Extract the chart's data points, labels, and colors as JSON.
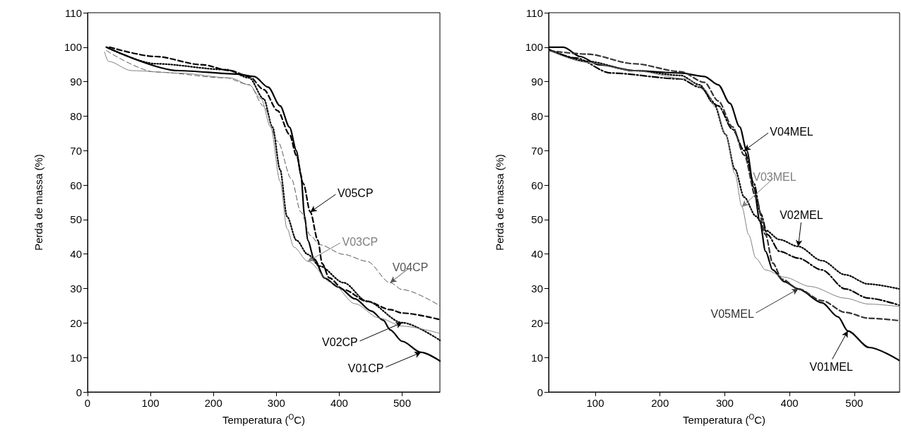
{
  "chart_data": [
    {
      "type": "line",
      "xlabel": "Temperatura ($^{O}$C)",
      "ylabel": "Perda de massa (%)",
      "xlim": [
        0,
        560
      ],
      "xticks": [
        0,
        100,
        200,
        300,
        400,
        500
      ],
      "ylim": [
        0,
        110
      ],
      "yticks": [
        0,
        10,
        20,
        30,
        40,
        50,
        60,
        70,
        80,
        90,
        100,
        110
      ],
      "grid": false,
      "legend": false,
      "marker": "none",
      "series": [
        {
          "name": "V01CP",
          "color": "#000000",
          "line_style": "solid",
          "x": [
            30,
            145,
            238,
            265,
            287,
            306,
            321,
            332,
            339,
            345,
            350,
            360,
            377,
            399,
            425,
            451,
            470,
            481,
            500,
            530,
            560
          ],
          "values": [
            100,
            93.2,
            92.2,
            91.5,
            88.4,
            83,
            76.8,
            70,
            63,
            51,
            44,
            38.6,
            33,
            30.4,
            27,
            23.5,
            20.8,
            18,
            14.7,
            11.5,
            9
          ]
        },
        {
          "name": "V05CP",
          "color": "#000000",
          "line_style": "dashed",
          "x": [
            35,
            108,
            182,
            227,
            257,
            280,
            302,
            321,
            332,
            343,
            354,
            366,
            373,
            384,
            407,
            444,
            481,
            500,
            560
          ],
          "values": [
            100,
            97.3,
            94.9,
            93.2,
            91.5,
            87.7,
            81.6,
            74.7,
            68.6,
            60.4,
            52.2,
            44,
            37.2,
            33.1,
            29.7,
            26.3,
            23.9,
            22.9,
            21
          ]
        },
        {
          "name": "V02CP",
          "color": "#000000",
          "line_style": "dotted",
          "x": [
            30,
            108,
            220,
            257,
            280,
            294,
            306,
            317,
            332,
            350,
            369,
            407,
            444,
            500,
            560
          ],
          "values": [
            100,
            95.2,
            93.5,
            91.1,
            85,
            76.8,
            64.5,
            50.9,
            44,
            39.9,
            36.5,
            31.7,
            26.3,
            20.1,
            15
          ]
        },
        {
          "name": "V04CP",
          "color": "#555555",
          "line_style": "dashed",
          "x": [
            30,
            108,
            220,
            257,
            280,
            302,
            324,
            339,
            354,
            369,
            407,
            444,
            481,
            500,
            560
          ],
          "values": [
            99,
            92.8,
            91.1,
            89.1,
            82.9,
            72.7,
            61.8,
            52.2,
            45.4,
            42.7,
            39.9,
            37.9,
            31.7,
            29.7,
            25
          ]
        },
        {
          "name": "V03CP",
          "color": "#7f7f7f",
          "line_style": "solid",
          "x": [
            27,
            33,
            70,
            145,
            227,
            257,
            276,
            291,
            306,
            317,
            328,
            350,
            388,
            425,
            463,
            500,
            560
          ],
          "values": [
            98.6,
            95.9,
            93.2,
            92.5,
            91.1,
            89.1,
            85,
            76.8,
            61.1,
            47.4,
            42,
            37.9,
            31.7,
            25.6,
            21.5,
            19.1,
            17
          ]
        }
      ]
    },
    {
      "type": "line",
      "xlabel": "Temperatura ($^{O}$C)",
      "ylabel": "Perda de massa (%)",
      "xlim": [
        28,
        570
      ],
      "xticks": [
        100,
        200,
        300,
        400,
        500
      ],
      "ylim": [
        0,
        110
      ],
      "yticks": [
        0,
        10,
        20,
        30,
        40,
        50,
        60,
        70,
        80,
        90,
        100,
        110
      ],
      "grid": false,
      "legend": false,
      "marker": "none",
      "series": [
        {
          "name": "V01MEL",
          "color": "#000000",
          "line_style": "solid",
          "x": [
            29,
            51,
            76.5,
            105.5,
            160,
            232,
            268.6,
            290,
            308,
            323,
            334,
            345,
            354,
            363,
            374,
            392,
            413.5,
            450,
            475,
            490,
            523,
            569
          ],
          "values": [
            100,
            100,
            97.3,
            94.9,
            93.2,
            92.5,
            91.5,
            89.1,
            83.7,
            76.9,
            70,
            59.2,
            49.7,
            40.8,
            35.4,
            32,
            29.9,
            25.9,
            21.8,
            17.7,
            12.9,
            9.2
          ]
        },
        {
          "name": "V02MEL",
          "color": "#000000",
          "line_style": "dotted",
          "x": [
            29,
            87,
            160,
            232,
            261,
            283,
            301,
            315.7,
            330,
            348,
            363,
            384.5,
            413.5,
            450,
            486,
            522,
            569
          ],
          "values": [
            99.3,
            95.9,
            93.2,
            91.8,
            89.1,
            83.7,
            74.8,
            64.6,
            56.5,
            51,
            46.9,
            44.2,
            42.2,
            38.1,
            34,
            31.3,
            29.9
          ]
        },
        {
          "name": "V04MEL",
          "color": "#000000",
          "line_style": "dashdot",
          "x": [
            29,
            69,
            124,
            232,
            261,
            290,
            312,
            330,
            345,
            355.5,
            366,
            384.5,
            413.5,
            450,
            486,
            522,
            569
          ],
          "values": [
            99.3,
            96.9,
            92.5,
            90.8,
            88.4,
            83,
            76.2,
            70,
            60.5,
            51.7,
            45.6,
            40.8,
            38.8,
            35.4,
            29.9,
            27.2,
            25.2
          ]
        },
        {
          "name": "V03MEL",
          "color": "#7f7f7f",
          "line_style": "solid",
          "x": [
            29,
            87,
            160,
            240,
            268.6,
            287,
            301,
            315.7,
            326.5,
            337,
            348,
            363,
            392,
            432,
            486,
            522,
            569
          ],
          "values": [
            99,
            95.6,
            93.2,
            90.8,
            87.8,
            82.3,
            74.8,
            63.3,
            53.7,
            45.6,
            38.8,
            35.4,
            33.3,
            30.6,
            27.2,
            25.5,
            24.8
          ]
        },
        {
          "name": "V05MEL",
          "color": "#333333",
          "line_style": "dashed",
          "x": [
            29,
            87,
            160,
            232,
            268.6,
            290,
            312,
            330,
            348,
            363,
            374,
            388.6,
            413.5,
            450,
            486,
            522,
            569
          ],
          "values": [
            99,
            98,
            95.2,
            92.9,
            89.8,
            84.4,
            76.9,
            68.7,
            56.5,
            45.6,
            37.4,
            32.7,
            29.9,
            26.5,
            23.1,
            21.4,
            20.7
          ]
        }
      ]
    }
  ]
}
